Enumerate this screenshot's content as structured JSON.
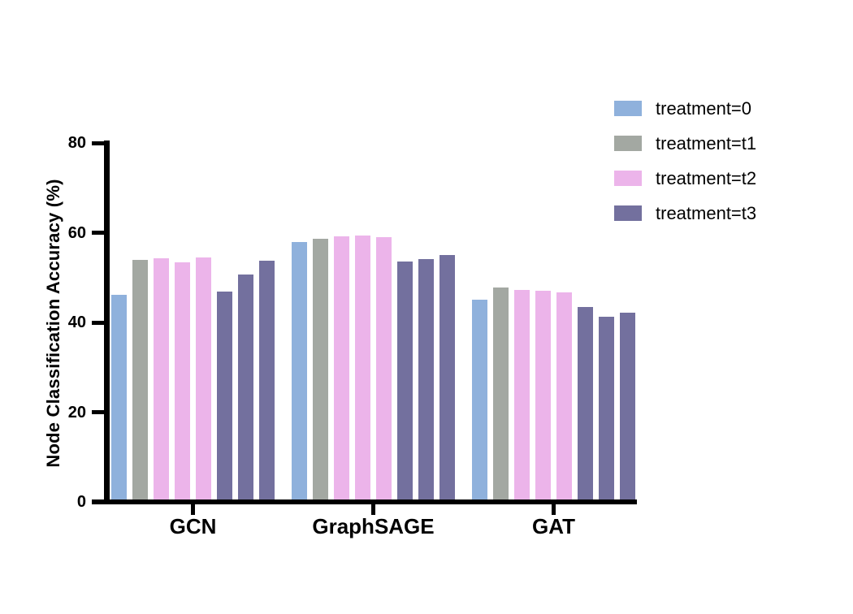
{
  "figure": {
    "background_color": "#ffffff",
    "axis_color": "#000000",
    "text_color": "#000000"
  },
  "chart_data": {
    "type": "bar",
    "title": "",
    "xlabel": "",
    "ylabel": "Node Classification Accuracy (%)",
    "ylim": [
      0,
      80
    ],
    "yticks": [
      0,
      20,
      40,
      60,
      80
    ],
    "grid": false,
    "legend_position": "outside-top-right",
    "categories": [
      "GCN",
      "GraphSAGE",
      "GAT"
    ],
    "legend": [
      {
        "label": "treatment=0",
        "color": "#8FB1DC"
      },
      {
        "label": "treatment=t1",
        "color": "#A3A8A2"
      },
      {
        "label": "treatment=t2",
        "color": "#ECB4EA"
      },
      {
        "label": "treatment=t3",
        "color": "#73709E"
      }
    ],
    "groups": [
      {
        "category": "GCN",
        "bars": [
          {
            "series": "treatment=0",
            "value": 46.2
          },
          {
            "series": "treatment=t1",
            "value": 53.9
          },
          {
            "series": "treatment=t2",
            "value": 54.3
          },
          {
            "series": "treatment=t2",
            "value": 53.4
          },
          {
            "series": "treatment=t2",
            "value": 54.5
          },
          {
            "series": "treatment=t3",
            "value": 46.8
          },
          {
            "series": "treatment=t3",
            "value": 50.7
          },
          {
            "series": "treatment=t3",
            "value": 53.8
          }
        ]
      },
      {
        "category": "GraphSAGE",
        "bars": [
          {
            "series": "treatment=0",
            "value": 57.9
          },
          {
            "series": "treatment=t1",
            "value": 58.6
          },
          {
            "series": "treatment=t2",
            "value": 59.1
          },
          {
            "series": "treatment=t2",
            "value": 59.4
          },
          {
            "series": "treatment=t2",
            "value": 59.0
          },
          {
            "series": "treatment=t3",
            "value": 53.6
          },
          {
            "series": "treatment=t3",
            "value": 54.1
          },
          {
            "series": "treatment=t3",
            "value": 55.1
          }
        ]
      },
      {
        "category": "GAT",
        "bars": [
          {
            "series": "treatment=0",
            "value": 45.0
          },
          {
            "series": "treatment=t1",
            "value": 47.8
          },
          {
            "series": "treatment=t2",
            "value": 47.2
          },
          {
            "series": "treatment=t2",
            "value": 47.1
          },
          {
            "series": "treatment=t2",
            "value": 46.7
          },
          {
            "series": "treatment=t3",
            "value": 43.4
          },
          {
            "series": "treatment=t3",
            "value": 41.2
          },
          {
            "series": "treatment=t3",
            "value": 42.1
          }
        ]
      }
    ]
  }
}
